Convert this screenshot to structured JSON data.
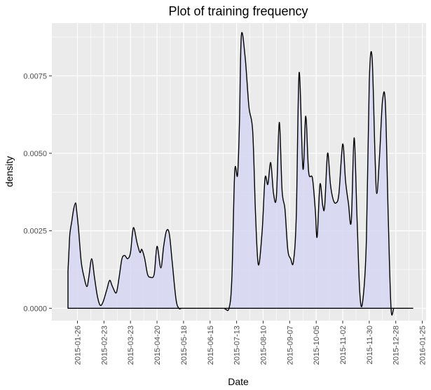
{
  "chart_data": {
    "type": "area",
    "title": "Plot of training frequency",
    "xlabel": "Date",
    "ylabel": "density",
    "x_ticks": [
      "2015-01-26",
      "2015-02-23",
      "2015-03-23",
      "2015-04-20",
      "2015-05-18",
      "2015-06-15",
      "2015-07-13",
      "2015-08-10",
      "2015-09-07",
      "2015-10-05",
      "2015-11-02",
      "2015-11-30",
      "2015-12-28",
      "2016-01-25"
    ],
    "y_ticks": [
      0.0,
      0.0025,
      0.005,
      0.0075
    ],
    "y_tick_labels": [
      "0.0000",
      "0.0025",
      "0.0050",
      "0.0075"
    ],
    "xlim": [
      "2014-12-30",
      "2016-01-29"
    ],
    "ylim": [
      -0.0004,
      0.0092
    ],
    "grid": true,
    "colors": {
      "panel": "#ebebeb",
      "grid": "#ffffff",
      "fill": "#d6d6f3",
      "line": "#000000",
      "tick": "#333333"
    },
    "series": [
      {
        "x": [
          "2015-01-16",
          "2015-01-17",
          "2015-01-18",
          "2015-01-20",
          "2015-01-22",
          "2015-01-24",
          "2015-01-25",
          "2015-01-27",
          "2015-01-30",
          "2015-02-02",
          "2015-02-05",
          "2015-02-07",
          "2015-02-10",
          "2015-02-13",
          "2015-02-16",
          "2015-02-19",
          "2015-02-22",
          "2015-02-26",
          "2015-03-01",
          "2015-03-04",
          "2015-03-08",
          "2015-03-11",
          "2015-03-14",
          "2015-03-17",
          "2015-03-20",
          "2015-03-23",
          "2015-03-26",
          "2015-03-30",
          "2015-04-02",
          "2015-04-04",
          "2015-04-07",
          "2015-04-10",
          "2015-04-13",
          "2015-04-17",
          "2015-04-20",
          "2015-04-24",
          "2015-04-27",
          "2015-04-30",
          "2015-05-03",
          "2015-05-06",
          "2015-05-10",
          "2015-05-13",
          "2015-05-16",
          "2015-05-19",
          "2015-05-22",
          "2015-05-26",
          "2015-06-01",
          "2015-06-15",
          "2015-06-29",
          "2015-07-05",
          "2015-07-08",
          "2015-07-11",
          "2015-07-14",
          "2015-07-16",
          "2015-07-18",
          "2015-07-22",
          "2015-07-26",
          "2015-07-30",
          "2015-08-02",
          "2015-08-05",
          "2015-08-09",
          "2015-08-12",
          "2015-08-15",
          "2015-08-18",
          "2015-08-21",
          "2015-08-24",
          "2015-08-27",
          "2015-08-30",
          "2015-09-02",
          "2015-09-05",
          "2015-09-08",
          "2015-09-11",
          "2015-09-14",
          "2015-09-17",
          "2015-09-21",
          "2015-09-24",
          "2015-09-27",
          "2015-10-01",
          "2015-10-04",
          "2015-10-06",
          "2015-10-09",
          "2015-10-12",
          "2015-10-14",
          "2015-10-17",
          "2015-10-20",
          "2015-10-23",
          "2015-10-26",
          "2015-10-29",
          "2015-11-02",
          "2015-11-05",
          "2015-11-08",
          "2015-11-11",
          "2015-11-14",
          "2015-11-17",
          "2015-11-20",
          "2015-11-23",
          "2015-11-27",
          "2015-11-30",
          "2015-12-03",
          "2015-12-06",
          "2015-12-08",
          "2015-12-11",
          "2015-12-14",
          "2015-12-17",
          "2015-12-20",
          "2015-12-23",
          "2015-12-26",
          "2015-12-29",
          "2016-01-01",
          "2016-01-04",
          "2016-01-08",
          "2016-01-11",
          "2016-01-14",
          "2016-01-15"
        ],
        "y": [
          0.0012,
          0.0018,
          0.0024,
          0.0028,
          0.0032,
          0.0034,
          0.0032,
          0.0026,
          0.0015,
          0.001,
          0.0007,
          0.001,
          0.0016,
          0.001,
          0.0004,
          0.0001,
          0.0002,
          0.0006,
          0.0009,
          0.0007,
          0.0005,
          0.001,
          0.0016,
          0.0017,
          0.0016,
          0.0018,
          0.0026,
          0.0021,
          0.0018,
          0.0019,
          0.0016,
          0.0011,
          0.001,
          0.0011,
          0.002,
          0.0013,
          0.002,
          0.0025,
          0.0024,
          0.0015,
          0.0003,
          0.0,
          0.0,
          0.0,
          0.0,
          0.0,
          0.0,
          0.0,
          0.0,
          0.0,
          0.001,
          0.0044,
          0.0043,
          0.006,
          0.0088,
          0.0081,
          0.0065,
          0.0057,
          0.003,
          0.0014,
          0.0025,
          0.0042,
          0.004,
          0.0047,
          0.0037,
          0.0036,
          0.006,
          0.0038,
          0.0032,
          0.0019,
          0.0016,
          0.0015,
          0.003,
          0.0076,
          0.0045,
          0.0062,
          0.0044,
          0.0042,
          0.0032,
          0.0023,
          0.004,
          0.0033,
          0.0033,
          0.005,
          0.004,
          0.0035,
          0.0034,
          0.0037,
          0.0053,
          0.0041,
          0.0034,
          0.0028,
          0.0055,
          0.003,
          0.0005,
          0.0002,
          0.0022,
          0.0073,
          0.0081,
          0.005,
          0.0037,
          0.005,
          0.0067,
          0.0066,
          0.003,
          0.0,
          0.0,
          0.0,
          0.0,
          0.0,
          0.0,
          0.0,
          0.0,
          0.0
        ]
      }
    ]
  }
}
